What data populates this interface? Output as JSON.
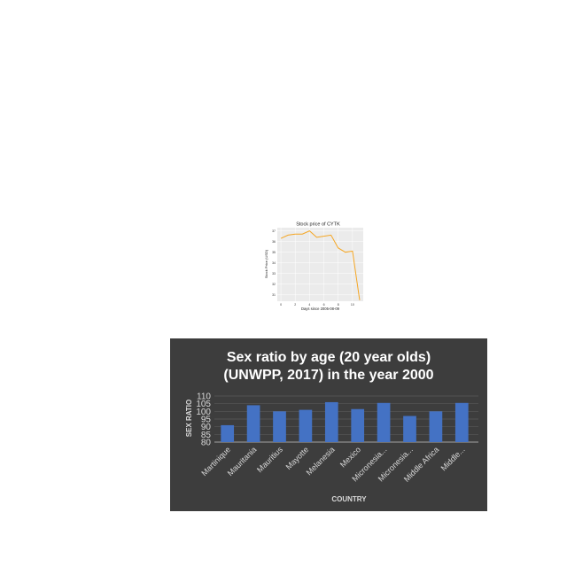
{
  "chart_data": [
    {
      "type": "line",
      "title": "Stock price of CYTK",
      "xlabel": "Days since 2005-08-09",
      "ylabel": "Stock Price (USD)",
      "x": [
        0,
        1,
        2,
        3,
        4,
        5,
        6,
        7,
        8,
        9,
        10,
        11
      ],
      "series": [
        {
          "values": [
            36.3,
            36.6,
            36.7,
            36.7,
            37.0,
            36.4,
            36.5,
            36.6,
            35.4,
            35.0,
            35.1,
            30.5
          ]
        }
      ],
      "xticks": [
        "0",
        "2",
        "4",
        "6",
        "8",
        "10"
      ],
      "xtick_values": [
        0,
        2,
        4,
        6,
        8,
        10
      ],
      "yticks": [
        "31",
        "32",
        "33",
        "34",
        "35",
        "36",
        "37"
      ],
      "ytick_values": [
        31,
        32,
        33,
        34,
        35,
        36,
        37
      ],
      "xlim": [
        -0.5,
        11.5
      ],
      "ylim": [
        30.4,
        37.3
      ],
      "grid": true,
      "colors": {
        "line": "#f5a623",
        "plot_bg": "#ebebeb",
        "grid": "#ffffff"
      }
    },
    {
      "type": "bar",
      "title": "Sex ratio by age (20 year olds)",
      "subtitle": "(UNWPP, 2017) in the year 2000",
      "xlabel": "COUNTRY",
      "ylabel": "SEX RATIO",
      "categories": [
        "Martinique",
        "Mauritania",
        "Mauritius",
        "Mayotte",
        "Melanesia",
        "Mexico",
        "Micronesia...",
        "Micronesia...",
        "Middle Africa",
        "Middle..."
      ],
      "values": [
        91,
        104,
        100,
        101,
        106,
        101.5,
        105.5,
        97,
        100,
        105.5
      ],
      "yticks": [
        "80",
        "85",
        "90",
        "95",
        "100",
        "105",
        "110"
      ],
      "ytick_values": [
        80,
        85,
        90,
        95,
        100,
        105,
        110
      ],
      "ylim": [
        80,
        110
      ],
      "grid": true,
      "colors": {
        "background": "#3d3d3d",
        "bar": "#4472c4",
        "text": "#ffffff",
        "axis_text": "#d9d9d9",
        "grid": "#5a5a5a"
      }
    }
  ]
}
